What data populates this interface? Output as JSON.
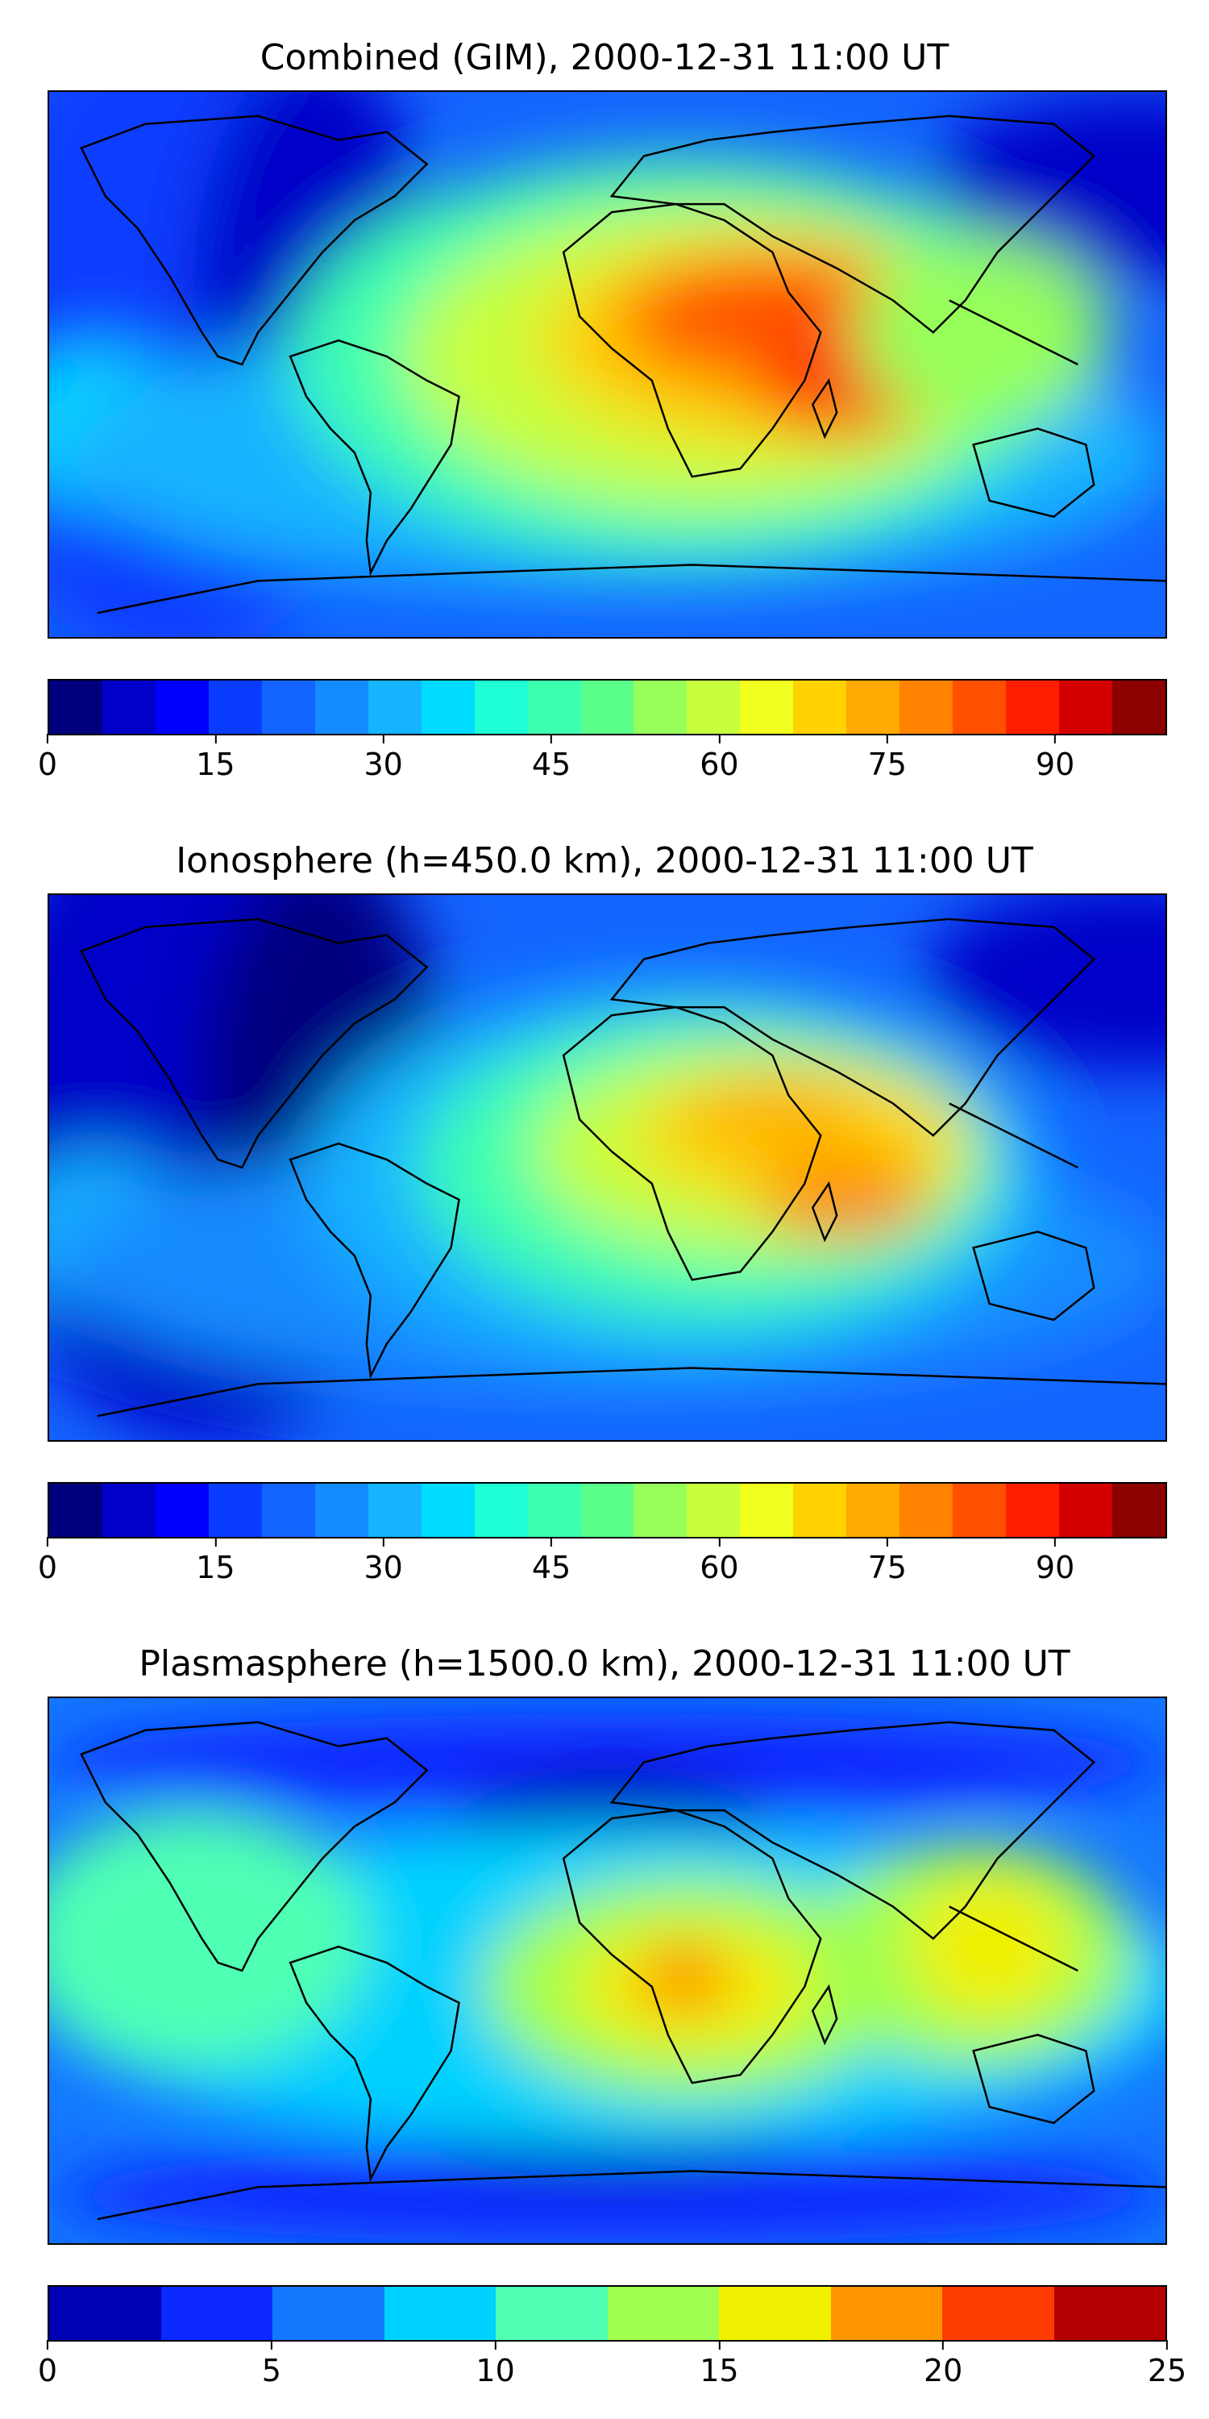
{
  "panels": [
    {
      "id": "combined",
      "title": "Combined (GIM), 2000-12-31 11:00 UT",
      "colorbar": {
        "colors": [
          "#00007f",
          "#0000c8",
          "#0000ff",
          "#0a3cff",
          "#1464ff",
          "#148cff",
          "#14b4ff",
          "#00dcff",
          "#1effd6",
          "#3cffb0",
          "#5aff8a",
          "#96ff5a",
          "#c8ff3c",
          "#f0ff1e",
          "#ffd200",
          "#ffaa00",
          "#ff8200",
          "#ff5000",
          "#ff1e00",
          "#d20000",
          "#8c0000"
        ],
        "min": 0,
        "max": 100,
        "ticks": [
          "0",
          "15",
          "30",
          "45",
          "60",
          "75",
          "90"
        ]
      }
    },
    {
      "id": "ionosphere",
      "title": "Ionosphere  (h=450.0 km), 2000-12-31 11:00 UT",
      "colorbar": {
        "colors": [
          "#00007f",
          "#0000c8",
          "#0000ff",
          "#0a3cff",
          "#1464ff",
          "#148cff",
          "#14b4ff",
          "#00dcff",
          "#1effd6",
          "#3cffb0",
          "#5aff8a",
          "#96ff5a",
          "#c8ff3c",
          "#f0ff1e",
          "#ffd200",
          "#ffaa00",
          "#ff8200",
          "#ff5000",
          "#ff1e00",
          "#d20000",
          "#8c0000"
        ],
        "min": 0,
        "max": 100,
        "ticks": [
          "0",
          "15",
          "30",
          "45",
          "60",
          "75",
          "90"
        ]
      }
    },
    {
      "id": "plasmasphere",
      "title": "Plasmasphere (h=1500.0 km), 2000-12-31 11:00 UT",
      "colorbar": {
        "colors": [
          "#0000b4",
          "#0a28ff",
          "#1478ff",
          "#00d2ff",
          "#50ffb4",
          "#a0ff50",
          "#f0f000",
          "#ff9600",
          "#ff3c00",
          "#b40000"
        ],
        "min": 0,
        "max": 25,
        "ticks": [
          "0",
          "5",
          "10",
          "15",
          "20",
          "25"
        ]
      }
    }
  ]
}
